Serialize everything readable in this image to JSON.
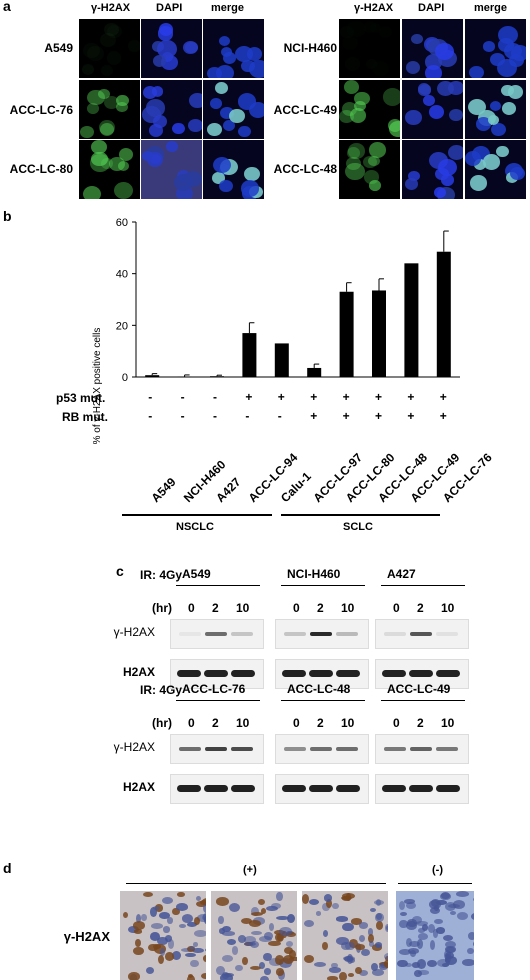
{
  "panel_a": {
    "letter": "a",
    "col_headers": [
      "γ-H2AX",
      "DAPI",
      "merge"
    ],
    "left_rows": [
      "A549",
      "ACC-LC-76",
      "ACC-LC-80"
    ],
    "right_rows": [
      "NCI-H460",
      "ACC-LC-49",
      "ACC-LC-48"
    ]
  },
  "panel_b": {
    "letter": "b",
    "row_labels": [
      "p53 mut.",
      "RB mut."
    ],
    "p53": [
      "-",
      "-",
      "-",
      "+",
      "+",
      "+",
      "+",
      "+",
      "+",
      "+"
    ],
    "rb": [
      "-",
      "-",
      "-",
      "-",
      "-",
      "+",
      "+",
      "+",
      "+",
      "+"
    ],
    "group_labels": [
      "NSCLC",
      "SCLC"
    ]
  },
  "chart_data": {
    "type": "bar",
    "categories": [
      "A549",
      "NCI-H460",
      "A427",
      "ACC-LC-94",
      "Calu-1",
      "ACC-LC-97",
      "ACC-LC-80",
      "ACC-LC-48",
      "ACC-LC-49",
      "ACC-LC-76"
    ],
    "values": [
      0.7,
      0.2,
      0.3,
      17,
      13,
      3.5,
      33,
      33.5,
      44,
      48.5
    ],
    "errors": [
      0.6,
      0.6,
      0.4,
      4,
      0,
      1.5,
      3.5,
      4.5,
      0,
      8
    ],
    "ylabel": "% of γ-H2AX positive cells",
    "ylim": [
      0,
      60
    ],
    "yticks": [
      0,
      20,
      40,
      60
    ]
  },
  "panel_c": {
    "letter": "c",
    "ir_label": "IR: 4Gy",
    "hr_label": "(hr)",
    "times": [
      "0",
      "2",
      "10"
    ],
    "gamma_label": "γ-H2AX",
    "h2ax_label": "H2AX",
    "top_lines": [
      "A549",
      "NCI-H460",
      "A427"
    ],
    "bottom_lines": [
      "ACC-LC-76",
      "ACC-LC-48",
      "ACC-LC-49"
    ],
    "gamma_top": [
      [
        0.05,
        0.6,
        0.2
      ],
      [
        0.2,
        0.9,
        0.25
      ],
      [
        0.1,
        0.7,
        0.08
      ]
    ],
    "gamma_bottom": [
      [
        0.6,
        0.8,
        0.75
      ],
      [
        0.45,
        0.6,
        0.6
      ],
      [
        0.55,
        0.65,
        0.55
      ]
    ]
  },
  "panel_d": {
    "letter": "d",
    "pos_label": "(+)",
    "neg_label": "(-)",
    "row_label": "γ-H2AX"
  }
}
